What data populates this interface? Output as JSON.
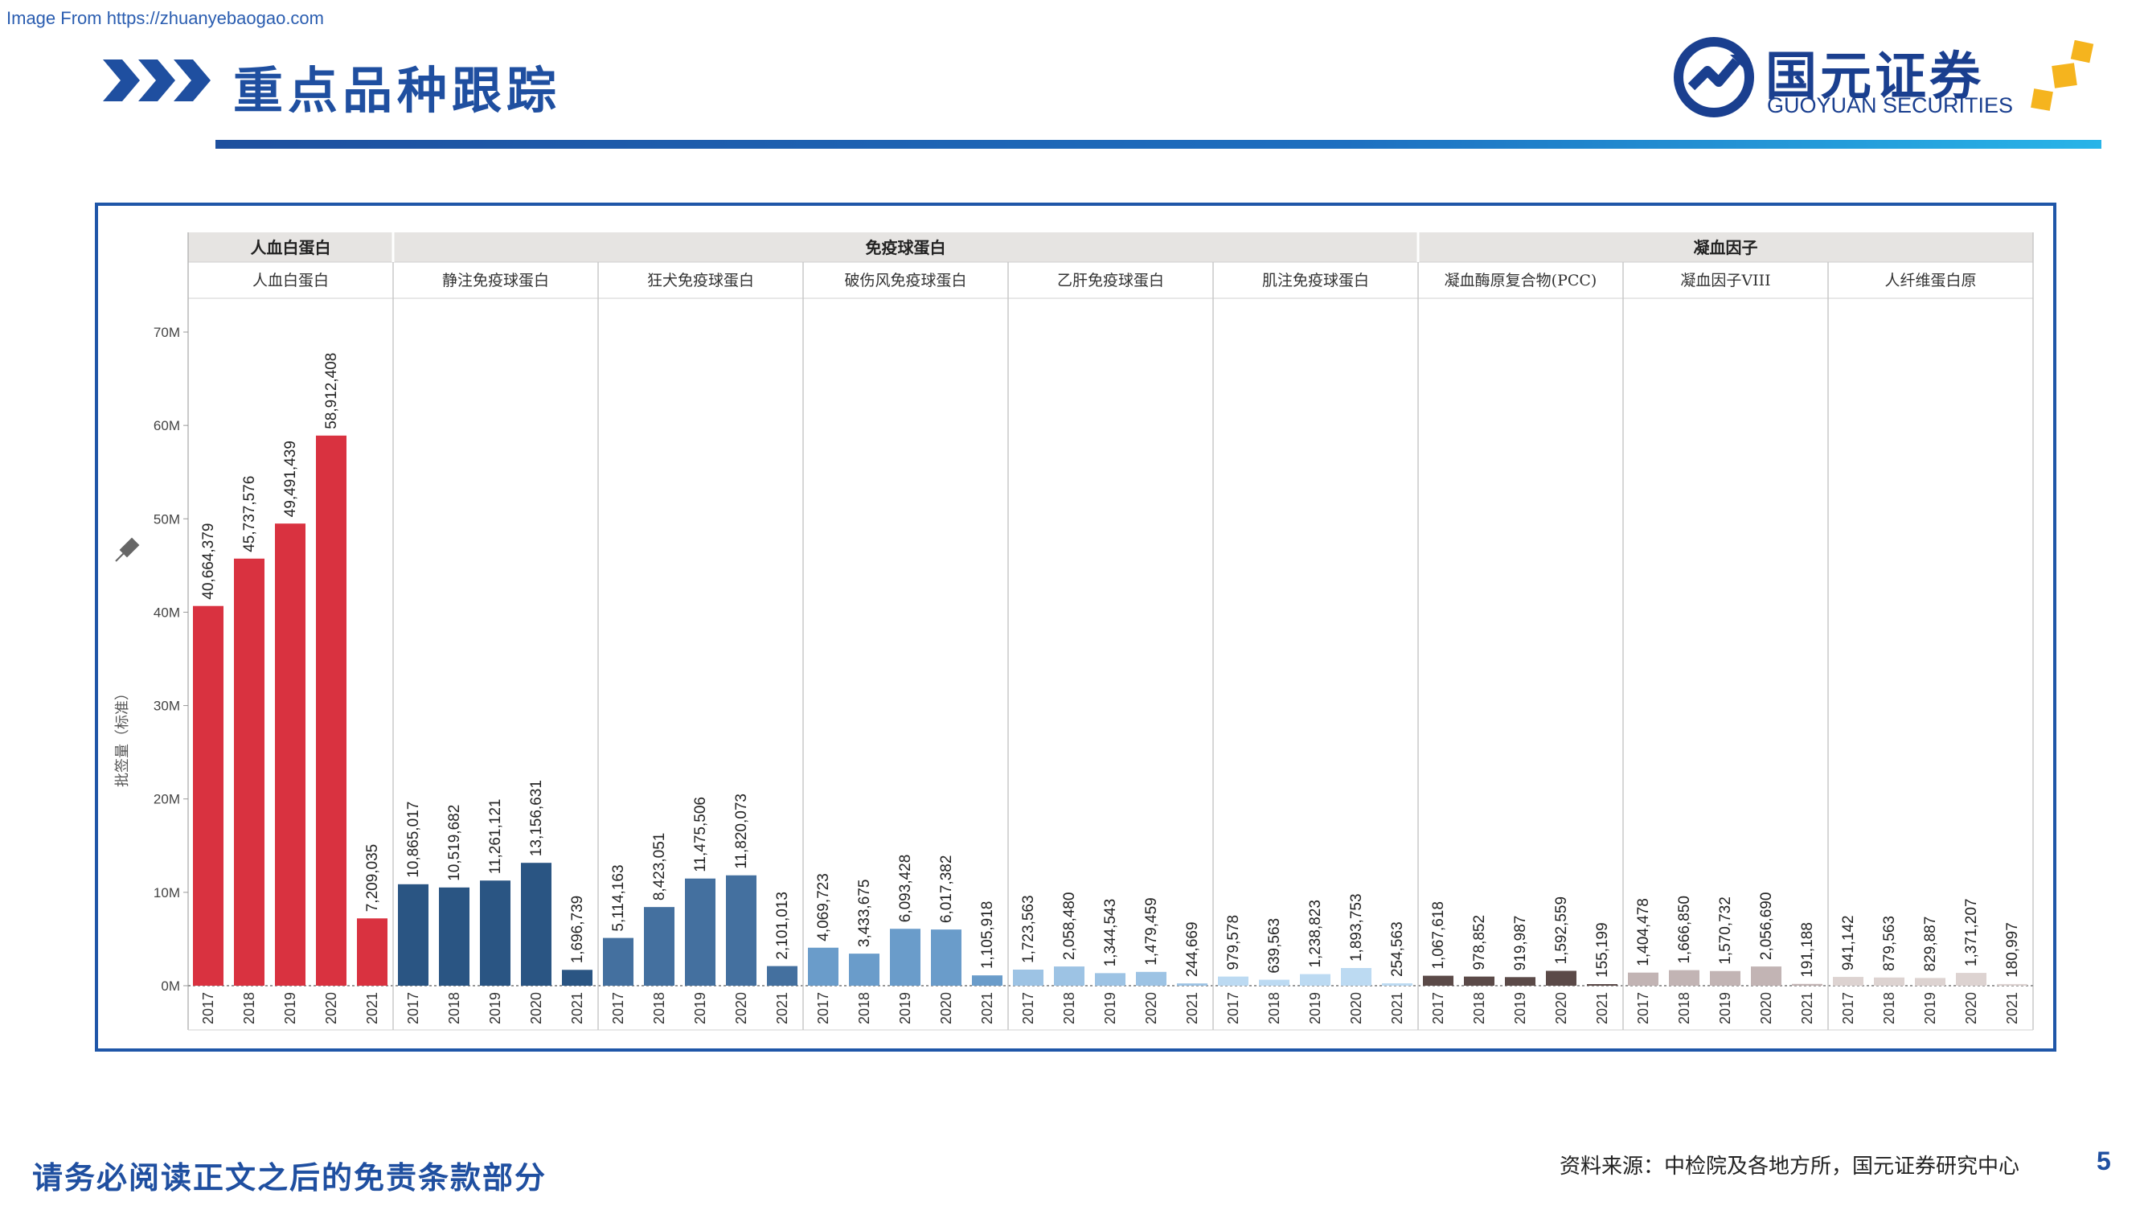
{
  "watermark": "Image From https://zhuanyebaogao.com",
  "header": {
    "title": "重点品种跟踪",
    "logo_cn": "国元证券",
    "logo_en": "GUOYUAN SECURITIES"
  },
  "footer": {
    "disclaimer": "请务必阅读正文之后的免责条款部分",
    "source": "资料来源：中检院及各地方所，国元证券研究中心",
    "page_number": "5"
  },
  "colors": {
    "accent": "#1f4fa0",
    "logo_gold": "#f5b41e"
  },
  "chart_data": {
    "type": "bar",
    "ylabel": "批签量（标准）",
    "ylim": [
      0,
      72000000
    ],
    "yticks": [
      0,
      10000000,
      20000000,
      30000000,
      40000000,
      50000000,
      60000000,
      70000000
    ],
    "ytick_labels": [
      "0M",
      "10M",
      "20M",
      "30M",
      "40M",
      "50M",
      "60M",
      "70M"
    ],
    "grid": false,
    "x_categories": [
      "2017",
      "2018",
      "2019",
      "2020",
      "2021"
    ],
    "groups": [
      {
        "name": "人血白蛋白",
        "span": 1
      },
      {
        "name": "免疫球蛋白",
        "span": 5
      },
      {
        "name": "凝血因子",
        "span": 3
      }
    ],
    "series": [
      {
        "name": "人血白蛋白",
        "color": "#d93240",
        "values": [
          40664379,
          45737576,
          49491439,
          58912408,
          7209035
        ],
        "labels": [
          "40,664,379",
          "45,737,576",
          "49,491,439",
          "58,912,408",
          "7,209,035"
        ]
      },
      {
        "name": "静注免疫球蛋白",
        "color": "#2a5583",
        "values": [
          10865017,
          10519682,
          11261121,
          13156631,
          1696739
        ],
        "labels": [
          "10,865,017",
          "10,519,682",
          "11,261,121",
          "13,156,631",
          "1,696,739"
        ]
      },
      {
        "name": "狂犬免疫球蛋白",
        "color": "#44709f",
        "values": [
          5114163,
          8423051,
          11475506,
          11820073,
          2101013
        ],
        "labels": [
          "5,114,163",
          "8,423,051",
          "11,475,506",
          "11,820,073",
          "2,101,013"
        ]
      },
      {
        "name": "破伤风免疫球蛋白",
        "color": "#6a9cca",
        "values": [
          4069723,
          3433675,
          6093428,
          6017382,
          1105918
        ],
        "labels": [
          "4,069,723",
          "3,433,675",
          "6,093,428",
          "6,017,382",
          "1,105,918"
        ]
      },
      {
        "name": "乙肝免疫球蛋白",
        "color": "#9dc3e4",
        "values": [
          1723563,
          2058480,
          1344543,
          1479459,
          244669
        ],
        "labels": [
          "1,723,563",
          "2,058,480",
          "1,344,543",
          "1,479,459",
          "244,669"
        ]
      },
      {
        "name": "肌注免疫球蛋白",
        "color": "#bcdaf2",
        "values": [
          979578,
          639563,
          1238823,
          1893753,
          254563
        ],
        "labels": [
          "979,578",
          "639,563",
          "1,238,823",
          "1,893,753",
          "254,563"
        ]
      },
      {
        "name": "凝血酶原复合物(PCC)",
        "color": "#5b4a48",
        "values": [
          1067618,
          978852,
          919987,
          1592559,
          155199
        ],
        "labels": [
          "1,067,618",
          "978,852",
          "919,987",
          "1,592,559",
          "155,199"
        ]
      },
      {
        "name": "凝血因子VIII",
        "color": "#c2b4b4",
        "values": [
          1404478,
          1666850,
          1570732,
          2056690,
          191188
        ],
        "labels": [
          "1,404,478",
          "1,666,850",
          "1,570,732",
          "2,056,690",
          "191,188"
        ]
      },
      {
        "name": "人纤维蛋白原",
        "color": "#ddd3d1",
        "values": [
          941142,
          879563,
          829887,
          1371207,
          180997
        ],
        "labels": [
          "941,142",
          "879,563",
          "829,887",
          "1,371,207",
          "180,997"
        ]
      }
    ]
  }
}
